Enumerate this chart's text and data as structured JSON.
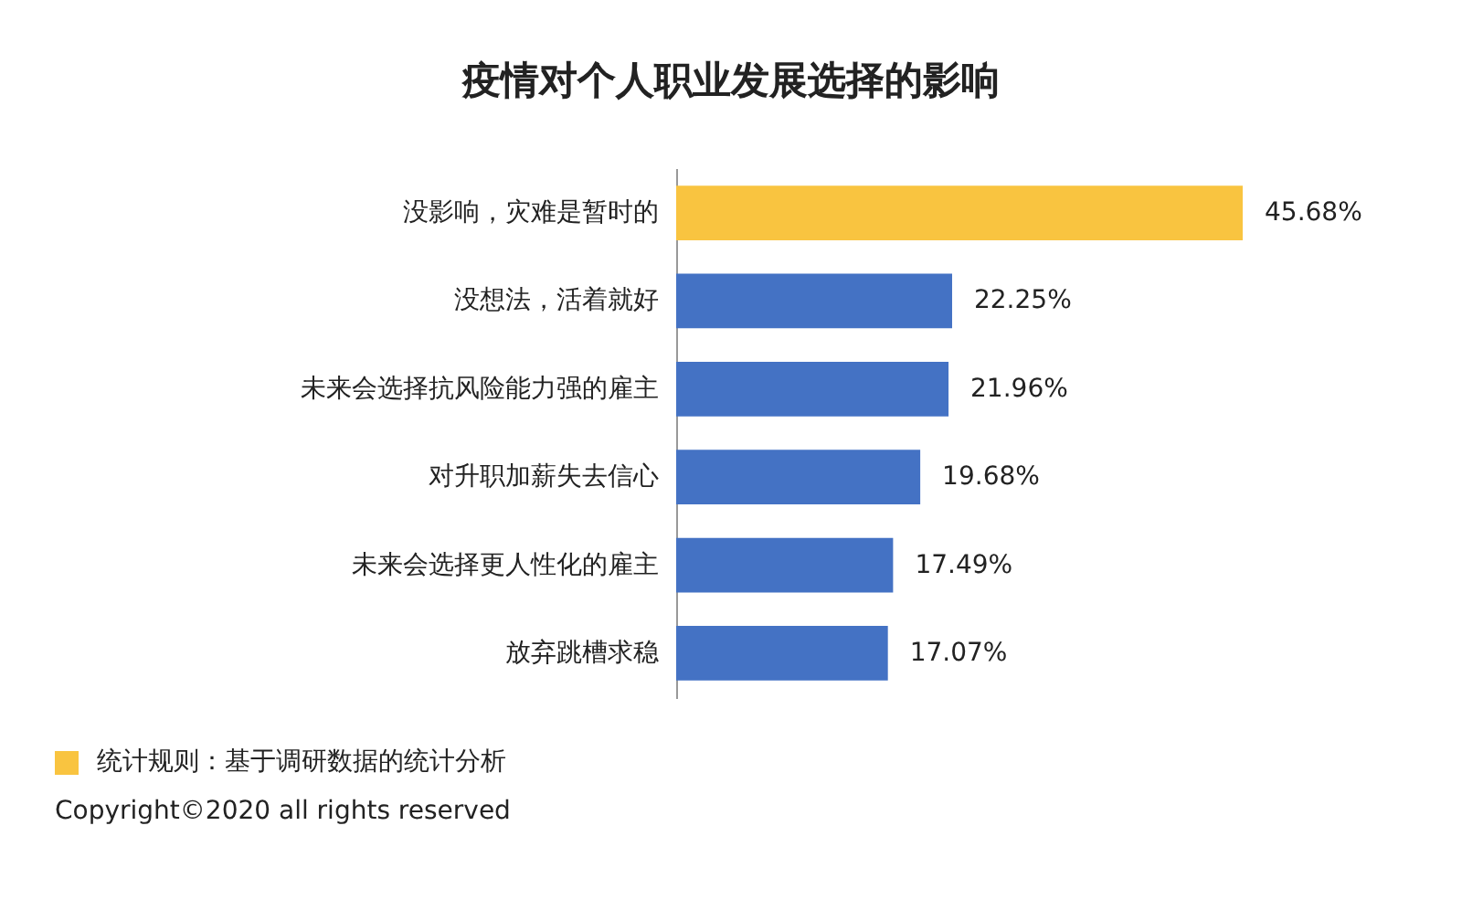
{
  "chart_data": {
    "type": "bar",
    "orientation": "horizontal",
    "title": "疫情对个人职业发展选择的影响",
    "categories": [
      "没影响，灾难是暂时的",
      "没想法，活着就好",
      "未来会选择抗风险能力强的雇主",
      "对升职加薪失去信心",
      "未来会选择更人性化的雇主",
      "放弃跳槽求稳"
    ],
    "values": [
      45.68,
      22.25,
      21.96,
      19.68,
      17.49,
      17.07
    ],
    "value_labels": [
      "45.68%",
      "22.25%",
      "21.96%",
      "19.68%",
      "17.49%",
      "17.07%"
    ],
    "colors": [
      "#f9c440",
      "#4472c4",
      "#4472c4",
      "#4472c4",
      "#4472c4",
      "#4472c4"
    ],
    "annotations": [
      "统计规则：基于调研数据的统计分析",
      "Copyright©2020 all rights reserved"
    ]
  }
}
